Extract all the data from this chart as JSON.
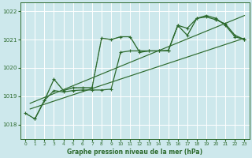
{
  "title": "Graphe pression niveau de la mer (hPa)",
  "bg_color": "#cde8ec",
  "grid_color": "#ffffff",
  "line_color": "#2d6a2d",
  "xlim": [
    -0.5,
    23.5
  ],
  "ylim": [
    1017.5,
    1022.3
  ],
  "yticks": [
    1018,
    1019,
    1020,
    1021,
    1022
  ],
  "xticks": [
    0,
    1,
    2,
    3,
    4,
    5,
    6,
    7,
    8,
    9,
    10,
    11,
    12,
    13,
    14,
    15,
    16,
    17,
    18,
    19,
    20,
    21,
    22,
    23
  ],
  "series1_x": [
    0,
    1,
    2,
    3,
    4,
    5,
    6,
    7,
    8,
    9,
    10,
    11,
    12,
    13,
    14,
    15,
    16,
    17,
    18,
    19,
    20,
    21,
    22,
    23
  ],
  "series1_y": [
    1018.4,
    1018.2,
    1018.85,
    1019.6,
    1019.2,
    1019.3,
    1019.3,
    1019.3,
    1021.05,
    1021.0,
    1021.1,
    1021.1,
    1020.55,
    1020.6,
    1020.6,
    1020.6,
    1021.5,
    1021.15,
    1021.75,
    1021.8,
    1021.7,
    1021.55,
    1021.15,
    1021.0
  ],
  "series2_x": [
    1,
    2,
    3,
    4,
    5,
    6,
    7,
    8,
    9,
    10,
    11,
    12,
    13,
    14,
    15,
    16,
    17,
    18,
    19,
    20,
    21,
    22,
    23
  ],
  "series2_y": [
    1018.2,
    1018.85,
    1019.2,
    1019.15,
    1019.2,
    1019.22,
    1019.22,
    1019.22,
    1019.25,
    1020.55,
    1020.6,
    1020.6,
    1020.6,
    1020.6,
    1020.62,
    1021.5,
    1021.4,
    1021.75,
    1021.85,
    1021.75,
    1021.5,
    1021.1,
    1021.0
  ],
  "trend1_x": [
    0.5,
    23
  ],
  "trend1_y": [
    1018.75,
    1021.85
  ],
  "trend2_x": [
    0.5,
    23
  ],
  "trend2_y": [
    1018.55,
    1021.05
  ]
}
